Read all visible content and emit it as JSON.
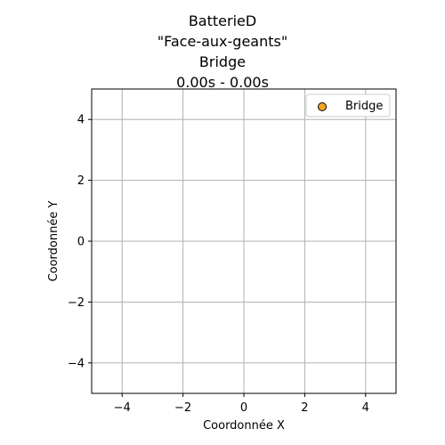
{
  "chart_data": {
    "type": "scatter",
    "title_lines": [
      "BatterieD",
      "\"Face-aux-geants\"",
      "Bridge",
      "0.00s - 0.00s"
    ],
    "xlabel": "Coordonnée X",
    "ylabel": "Coordonnée Y",
    "xlim": [
      -5,
      5
    ],
    "ylim": [
      -5,
      5
    ],
    "xticks": [
      -4,
      -2,
      0,
      2,
      4
    ],
    "yticks": [
      -4,
      -2,
      0,
      2,
      4
    ],
    "xtick_labels": [
      "−4",
      "−2",
      "0",
      "2",
      "4"
    ],
    "ytick_labels": [
      "−4",
      "−2",
      "0",
      "2",
      "4"
    ],
    "grid": true,
    "legend_position": "top-right",
    "series": [
      {
        "name": "Bridge",
        "color": "#f5a623",
        "edgecolor": "#000000",
        "points": []
      }
    ]
  }
}
